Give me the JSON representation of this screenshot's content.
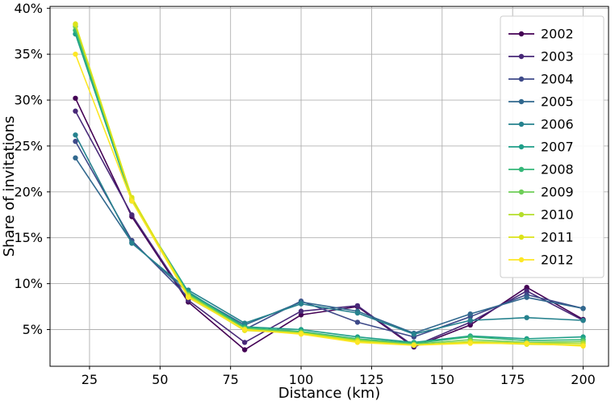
{
  "chart_data": {
    "type": "line",
    "title": "",
    "xlabel": "Distance (km)",
    "ylabel": "Share of invitations",
    "x": [
      20,
      40,
      60,
      80,
      100,
      120,
      140,
      160,
      180,
      200
    ],
    "series": [
      {
        "name": "2002",
        "color": "#440154",
        "values": [
          30.2,
          17.3,
          8.0,
          2.8,
          6.6,
          7.5,
          3.1,
          5.5,
          9.6,
          6.1
        ]
      },
      {
        "name": "2003",
        "color": "#482878",
        "values": [
          28.8,
          17.5,
          8.2,
          3.6,
          7.0,
          7.6,
          3.2,
          5.8,
          9.2,
          6.0
        ]
      },
      {
        "name": "2004",
        "color": "#3e4a89",
        "values": [
          25.5,
          14.7,
          8.5,
          5.0,
          8.1,
          5.8,
          4.2,
          6.4,
          8.8,
          7.3
        ]
      },
      {
        "name": "2005",
        "color": "#31688e",
        "values": [
          23.7,
          14.5,
          9.0,
          5.5,
          8.0,
          7.0,
          4.6,
          6.7,
          8.5,
          7.3
        ]
      },
      {
        "name": "2006",
        "color": "#26828e",
        "values": [
          26.2,
          14.4,
          9.3,
          5.7,
          7.8,
          6.8,
          4.5,
          6.0,
          6.3,
          6.0
        ]
      },
      {
        "name": "2007",
        "color": "#1f9e89",
        "values": [
          37.2,
          19.0,
          9.1,
          5.3,
          5.0,
          4.2,
          3.6,
          4.3,
          4.0,
          4.2
        ]
      },
      {
        "name": "2008",
        "color": "#35b779",
        "values": [
          37.6,
          19.1,
          8.9,
          5.2,
          4.8,
          4.0,
          3.5,
          4.2,
          3.8,
          3.9
        ]
      },
      {
        "name": "2009",
        "color": "#6ece58",
        "values": [
          38.0,
          19.2,
          8.8,
          5.1,
          4.7,
          3.9,
          3.4,
          3.9,
          3.6,
          3.7
        ]
      },
      {
        "name": "2010",
        "color": "#b5de2b",
        "values": [
          38.2,
          19.3,
          8.7,
          5.0,
          4.6,
          3.8,
          3.3,
          3.7,
          3.5,
          3.5
        ]
      },
      {
        "name": "2011",
        "color": "#dce319",
        "values": [
          38.3,
          19.4,
          8.6,
          4.9,
          4.6,
          3.7,
          3.3,
          3.6,
          3.4,
          3.3
        ]
      },
      {
        "name": "2012",
        "color": "#fde725",
        "values": [
          35.0,
          19.0,
          8.5,
          5.0,
          4.5,
          3.6,
          3.3,
          3.5,
          3.5,
          3.2
        ]
      }
    ],
    "xlim": [
      11,
      209
    ],
    "ylim": [
      1.0,
      40.2
    ],
    "x_ticks": [
      25,
      50,
      75,
      100,
      125,
      150,
      175,
      200
    ],
    "y_ticks": [
      5,
      10,
      15,
      20,
      25,
      30,
      35,
      40
    ],
    "y_tick_suffix": "%",
    "grid": true,
    "grid_color": "#b0b0b0",
    "spine_color": "#000000",
    "legend_position": "upper right",
    "legend_labels": [
      "2002",
      "2003",
      "2004",
      "2005",
      "2006",
      "2007",
      "2008",
      "2009",
      "2010",
      "2011",
      "2012"
    ]
  }
}
